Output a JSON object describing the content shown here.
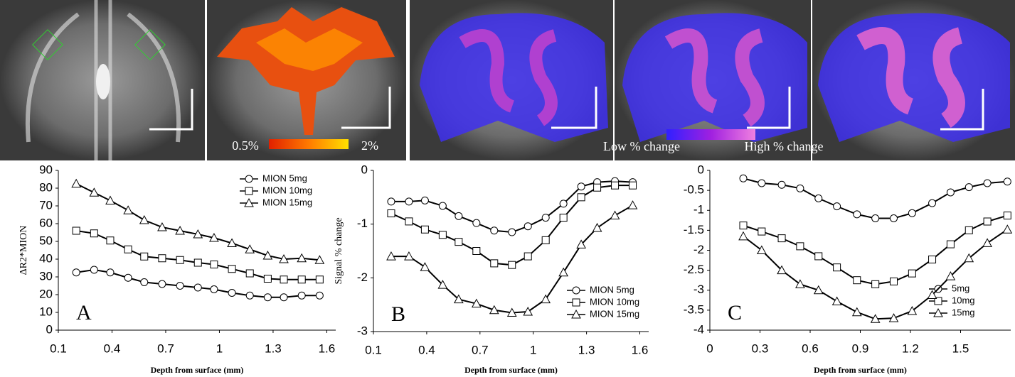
{
  "figure_labels": {
    "colorbar_1": {
      "low": "0.5%",
      "high": "2%"
    },
    "colorbar_2": {
      "low": "Low % change",
      "high": "High % change"
    }
  },
  "chart_data": [
    {
      "type": "line",
      "panel_label": "A",
      "x_label": "Depth from surface (mm)",
      "y_label": "ΔR2*MION",
      "xlim": [
        0.1,
        1.65
      ],
      "xticks": [
        0.1,
        0.4,
        0.7,
        1,
        1.3,
        1.6
      ],
      "ylim": [
        0,
        90
      ],
      "yticks": [
        0,
        10,
        20,
        30,
        40,
        50,
        60,
        70,
        80,
        90
      ],
      "legend": "upper right",
      "x": [
        0.2,
        0.3,
        0.39,
        0.49,
        0.58,
        0.68,
        0.78,
        0.88,
        0.97,
        1.07,
        1.17,
        1.27,
        1.36,
        1.46,
        1.56
      ],
      "series": [
        {
          "name": "MION 5mg",
          "color": "#000000",
          "marker": "circle",
          "values": [
            32.5,
            34,
            32.5,
            29.5,
            27,
            26,
            25,
            24,
            23,
            21,
            19.5,
            18.5,
            18.5,
            19.5,
            19.5
          ]
        },
        {
          "name": "MION 10mg",
          "color": "#000000",
          "marker": "square",
          "values": [
            56,
            54.5,
            50.5,
            45.5,
            41.5,
            40.5,
            39.5,
            38,
            37,
            34.5,
            32,
            29,
            28.5,
            28.5,
            28.5
          ]
        },
        {
          "name": "MION 15mg",
          "color": "#000000",
          "marker": "triangle",
          "values": [
            82.5,
            77.5,
            73,
            67.5,
            62,
            58,
            56,
            54,
            52,
            49,
            45.5,
            42,
            40,
            40.5,
            39.5
          ]
        }
      ]
    },
    {
      "type": "line",
      "panel_label": "B",
      "x_label": "Depth from surface (mm)",
      "y_label": "Signal % change",
      "xlim": [
        0.1,
        1.65
      ],
      "xticks": [
        0.1,
        0.4,
        0.7,
        1,
        1.3,
        1.6
      ],
      "ylim": [
        -3,
        0
      ],
      "yticks": [
        -3,
        -2,
        -1,
        0
      ],
      "legend": "lower right",
      "x": [
        0.2,
        0.3,
        0.39,
        0.49,
        0.58,
        0.68,
        0.78,
        0.88,
        0.97,
        1.07,
        1.17,
        1.27,
        1.36,
        1.46,
        1.56
      ],
      "series": [
        {
          "name": "MION 5mg",
          "color": "#000000",
          "marker": "circle",
          "values": [
            -0.58,
            -0.58,
            -0.56,
            -0.66,
            -0.85,
            -0.98,
            -1.12,
            -1.15,
            -1.04,
            -0.88,
            -0.62,
            -0.3,
            -0.22,
            -0.2,
            -0.22
          ]
        },
        {
          "name": "MION 10mg",
          "color": "#000000",
          "marker": "square",
          "values": [
            -0.8,
            -0.95,
            -1.1,
            -1.2,
            -1.33,
            -1.5,
            -1.73,
            -1.76,
            -1.6,
            -1.3,
            -0.88,
            -0.5,
            -0.32,
            -0.28,
            -0.28
          ]
        },
        {
          "name": "MION 15mg",
          "color": "#000000",
          "marker": "triangle",
          "values": [
            -1.6,
            -1.6,
            -1.8,
            -2.13,
            -2.4,
            -2.48,
            -2.6,
            -2.65,
            -2.63,
            -2.4,
            -1.9,
            -1.38,
            -1.07,
            -0.84,
            -0.65
          ]
        }
      ]
    },
    {
      "type": "line",
      "panel_label": "C",
      "x_label": "Depth from surface (mm)",
      "xlim": [
        0,
        1.8
      ],
      "xticks": [
        0,
        0.3,
        0.6,
        0.9,
        1.2,
        1.5
      ],
      "ylim": [
        -4,
        0
      ],
      "yticks": [
        -4,
        -3.5,
        -3,
        -2.5,
        -2,
        -1.5,
        -1,
        -0.5,
        0
      ],
      "legend": "lower right",
      "x": [
        0.2,
        0.31,
        0.43,
        0.54,
        0.65,
        0.76,
        0.88,
        0.99,
        1.1,
        1.21,
        1.33,
        1.44,
        1.55,
        1.66,
        1.78
      ],
      "series": [
        {
          "name": "5mg",
          "color": "#000000",
          "marker": "circle",
          "values": [
            -0.2,
            -0.32,
            -0.36,
            -0.45,
            -0.7,
            -0.9,
            -1.1,
            -1.2,
            -1.2,
            -1.07,
            -0.82,
            -0.55,
            -0.42,
            -0.32,
            -0.28
          ]
        },
        {
          "name": "10mg",
          "color": "#000000",
          "marker": "square",
          "values": [
            -1.38,
            -1.53,
            -1.7,
            -1.9,
            -2.15,
            -2.43,
            -2.75,
            -2.85,
            -2.78,
            -2.58,
            -2.23,
            -1.85,
            -1.5,
            -1.28,
            -1.13
          ]
        },
        {
          "name": "15mg",
          "color": "#000000",
          "marker": "triangle",
          "values": [
            -1.65,
            -2,
            -2.5,
            -2.85,
            -3.0,
            -3.28,
            -3.55,
            -3.72,
            -3.7,
            -3.52,
            -3.12,
            -2.65,
            -2.2,
            -1.82,
            -1.48
          ]
        }
      ]
    }
  ]
}
